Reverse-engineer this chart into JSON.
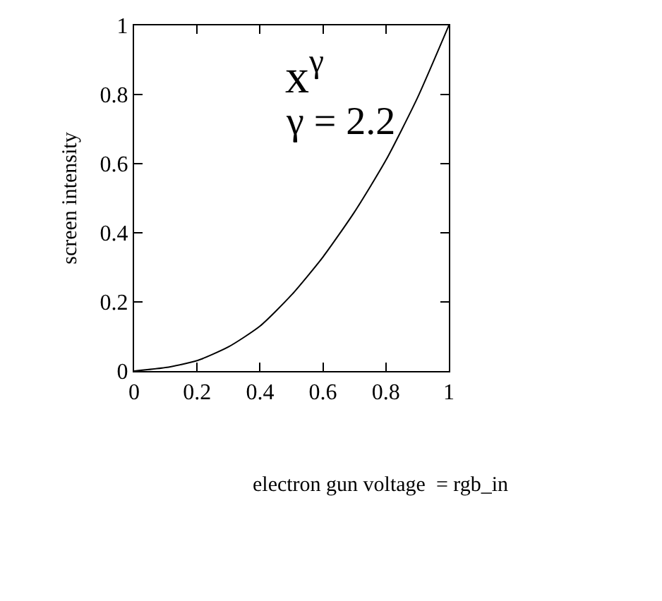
{
  "chart_data": {
    "type": "line",
    "xlabel": "electron gun voltage  = rgb_in",
    "ylabel": "screen intensity",
    "x": [
      0,
      0.1,
      0.2,
      0.3,
      0.4,
      0.5,
      0.6,
      0.7,
      0.8,
      0.9,
      1
    ],
    "series": [
      {
        "color": "#000000",
        "values": [
          0,
          0.01,
          0.03,
          0.07,
          0.13,
          0.22,
          0.33,
          0.46,
          0.61,
          0.79,
          1
        ]
      }
    ],
    "annotations": [
      "x$^{γ}$",
      "γ = 2.2"
    ],
    "xlim": [
      0,
      1
    ],
    "ylim": [
      0,
      1
    ],
    "xticks": [
      0,
      0.2,
      0.4,
      0.6,
      0.8,
      1
    ],
    "yticks": [
      0,
      0.2,
      0.4,
      0.6,
      0.8,
      1
    ],
    "marker": "none",
    "line_style": "solid"
  }
}
